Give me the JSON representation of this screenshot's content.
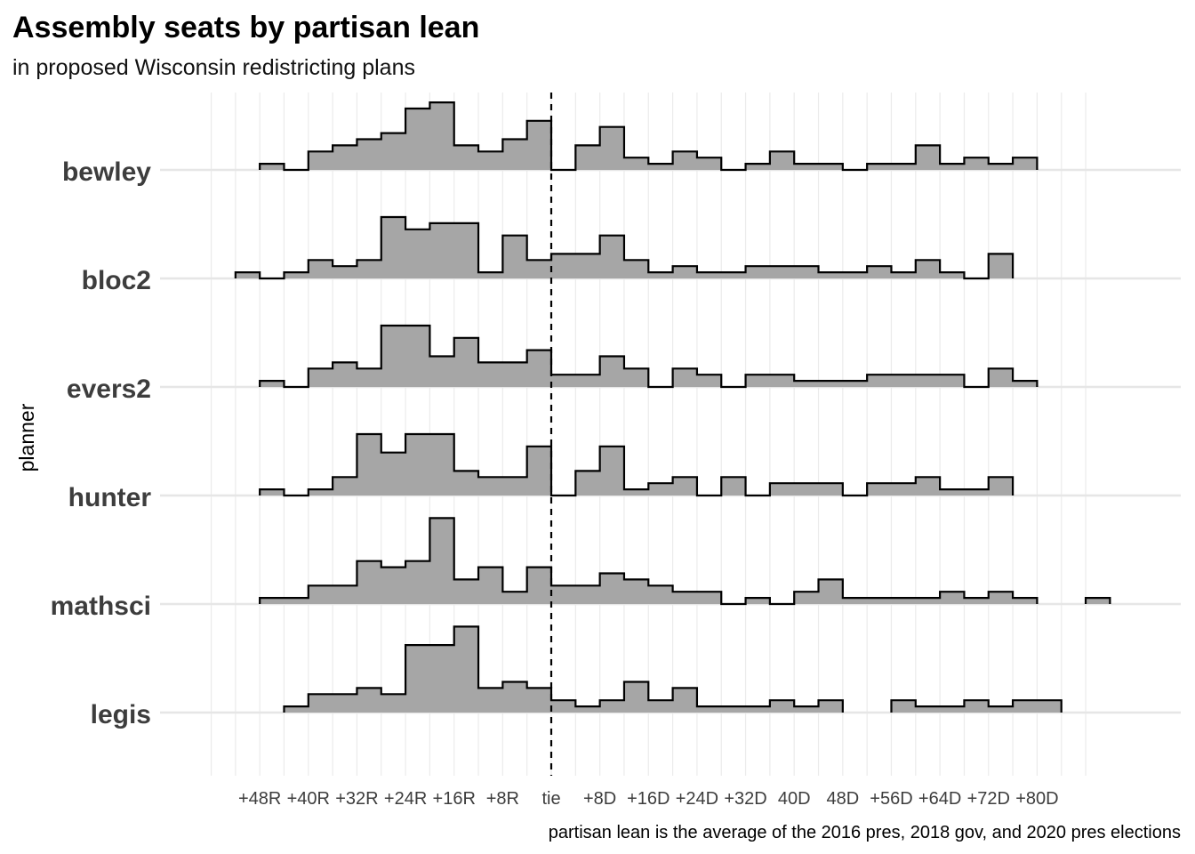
{
  "chart_data": {
    "type": "area",
    "title": "Assembly seats by partisan lean",
    "subtitle": "in proposed Wisconsin redistricting plans",
    "ylabel": "planner",
    "xlabel": "",
    "caption": "partisan lean is the average of the 2016 pres, 2018 gov, and 2020 pres elections",
    "x_ticks": [
      {
        "value": -48,
        "label": "+48R"
      },
      {
        "value": -40,
        "label": "+40R"
      },
      {
        "value": -32,
        "label": "+32R"
      },
      {
        "value": -24,
        "label": "+24R"
      },
      {
        "value": -16,
        "label": "+16R"
      },
      {
        "value": -8,
        "label": "+8R"
      },
      {
        "value": 0,
        "label": "tie"
      },
      {
        "value": 8,
        "label": "+8D"
      },
      {
        "value": 16,
        "label": "+16D"
      },
      {
        "value": 24,
        "label": "+24D"
      },
      {
        "value": 32,
        "label": "+32D"
      },
      {
        "value": 40,
        "label": "40D"
      },
      {
        "value": 48,
        "label": "48D"
      },
      {
        "value": 56,
        "label": "+56D"
      },
      {
        "value": 64,
        "label": "+64D"
      },
      {
        "value": 72,
        "label": "+72D"
      },
      {
        "value": 80,
        "label": "+80D"
      }
    ],
    "xlim": [
      -56,
      88
    ],
    "bin_width": 4,
    "reference_line": {
      "x": 0,
      "style": "dashed"
    },
    "fill_color": "#a6a6a6",
    "line_color": "#000000",
    "grid": true,
    "series": [
      {
        "name": "bewley",
        "start": -48,
        "values": [
          1,
          0,
          3,
          4,
          5,
          6,
          10,
          11,
          4,
          3,
          5,
          8,
          0,
          4,
          7,
          2,
          1,
          3,
          2,
          0,
          1,
          3,
          1,
          1,
          0,
          1,
          1,
          4,
          1,
          2,
          1,
          2
        ]
      },
      {
        "name": "bloc2",
        "start": -52,
        "values": [
          1,
          0,
          1,
          3,
          2,
          3,
          10,
          8,
          9,
          9,
          1,
          7,
          3,
          4,
          4,
          7,
          3,
          1,
          2,
          1,
          1,
          2,
          2,
          2,
          1,
          1,
          2,
          1,
          3,
          1,
          0,
          4
        ]
      },
      {
        "name": "evers2",
        "start": -48,
        "values": [
          1,
          0,
          3,
          4,
          3,
          10,
          10,
          5,
          8,
          4,
          4,
          6,
          2,
          2,
          5,
          3,
          0,
          3,
          2,
          0,
          2,
          2,
          1,
          1,
          1,
          2,
          2,
          2,
          2,
          0,
          3,
          1
        ]
      },
      {
        "name": "hunter",
        "start": -48,
        "values": [
          1,
          0,
          1,
          3,
          10,
          7,
          10,
          10,
          4,
          3,
          3,
          8,
          0,
          4,
          8,
          1,
          2,
          3,
          0,
          3,
          0,
          2,
          2,
          2,
          0,
          2,
          2,
          3,
          1,
          1,
          3
        ]
      },
      {
        "name": "mathsci",
        "start": -48,
        "values": [
          1,
          1,
          3,
          3,
          7,
          6,
          7,
          14,
          4,
          6,
          2,
          6,
          3,
          3,
          5,
          4,
          3,
          2,
          2,
          0,
          1,
          0,
          2,
          4,
          1,
          1,
          1,
          1,
          2,
          1,
          2,
          1,
          null,
          null,
          1
        ]
      },
      {
        "name": "legis",
        "start": -44,
        "values": [
          1,
          3,
          3,
          4,
          3,
          11,
          11,
          14,
          4,
          5,
          4,
          2,
          1,
          2,
          5,
          2,
          4,
          1,
          1,
          1,
          2,
          1,
          2,
          null,
          null,
          2,
          1,
          1,
          2,
          1,
          2,
          2
        ]
      }
    ]
  }
}
